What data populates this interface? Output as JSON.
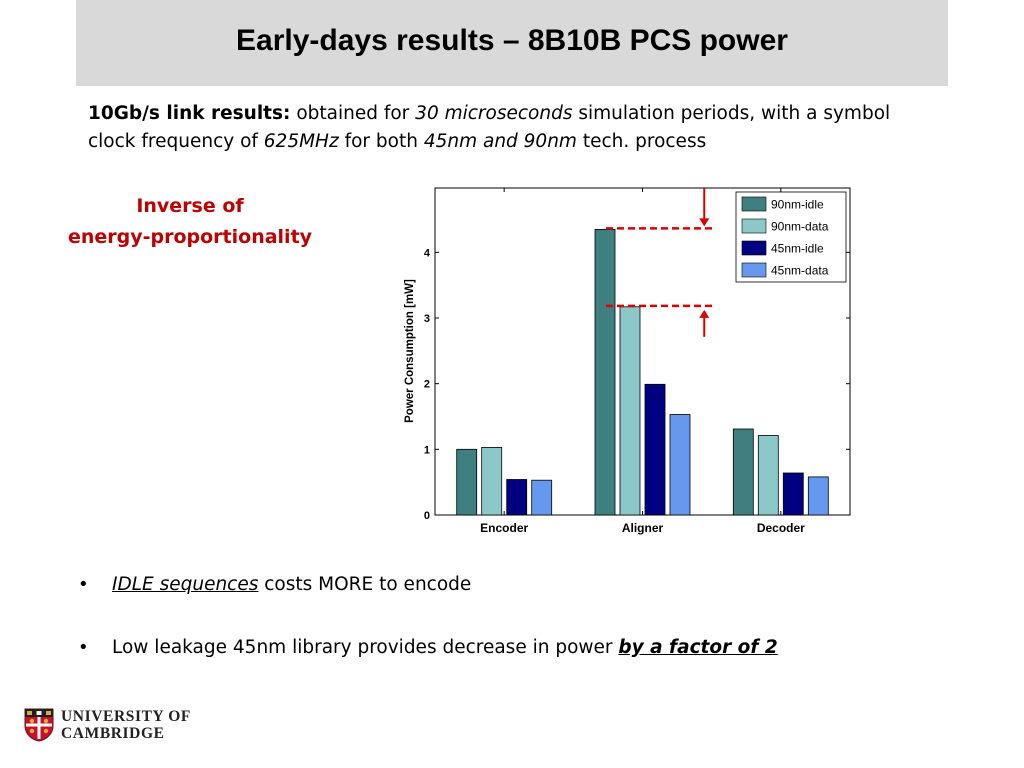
{
  "slide": {
    "title": "Early-days results – 8B10B PCS power",
    "intro": {
      "lead": "10Gb/s link results:",
      "t1": " obtained for ",
      "i1": "30 microseconds",
      "t2": " simulation periods, with a symbol clock frequency of ",
      "i2": "625MHz",
      "t3": " for both ",
      "i3": "45nm and 90nm",
      "t4": " tech. process"
    },
    "annotation": {
      "line1": "Inverse of",
      "line2": "energy-proportionality"
    },
    "bullets": [
      {
        "marker": "•",
        "link": "IDLE sequences",
        "rest": " costs MORE to encode"
      },
      {
        "marker": "•",
        "text": "Low leakage 45nm library provides decrease in power ",
        "emph": "by a factor of 2"
      }
    ],
    "logo": {
      "line1": "UNIVERSITY OF",
      "line2": "CAMBRIDGE",
      "icon": "cambridge-crest-icon"
    }
  },
  "chart_data": {
    "type": "bar",
    "title": "",
    "xlabel": "",
    "ylabel": "Power Consumption [mW]",
    "categories": [
      "Encoder",
      "Aligner",
      "Decoder"
    ],
    "series": [
      {
        "name": "90nm-idle",
        "color": "#3f7f7f",
        "values": [
          1.0,
          4.35,
          1.31
        ]
      },
      {
        "name": "90nm-data",
        "color": "#8cc8c8",
        "values": [
          1.03,
          3.17,
          1.21
        ]
      },
      {
        "name": "45nm-idle",
        "color": "#000080",
        "values": [
          0.54,
          1.99,
          0.64
        ]
      },
      {
        "name": "45nm-data",
        "color": "#6699ee",
        "values": [
          0.53,
          1.53,
          0.58
        ]
      }
    ],
    "ylim": [
      0,
      4.98
    ],
    "yticks": [
      0,
      1,
      2,
      3,
      4
    ],
    "legend": "top-right",
    "grid": false,
    "annotation_color": "#dd0000"
  }
}
